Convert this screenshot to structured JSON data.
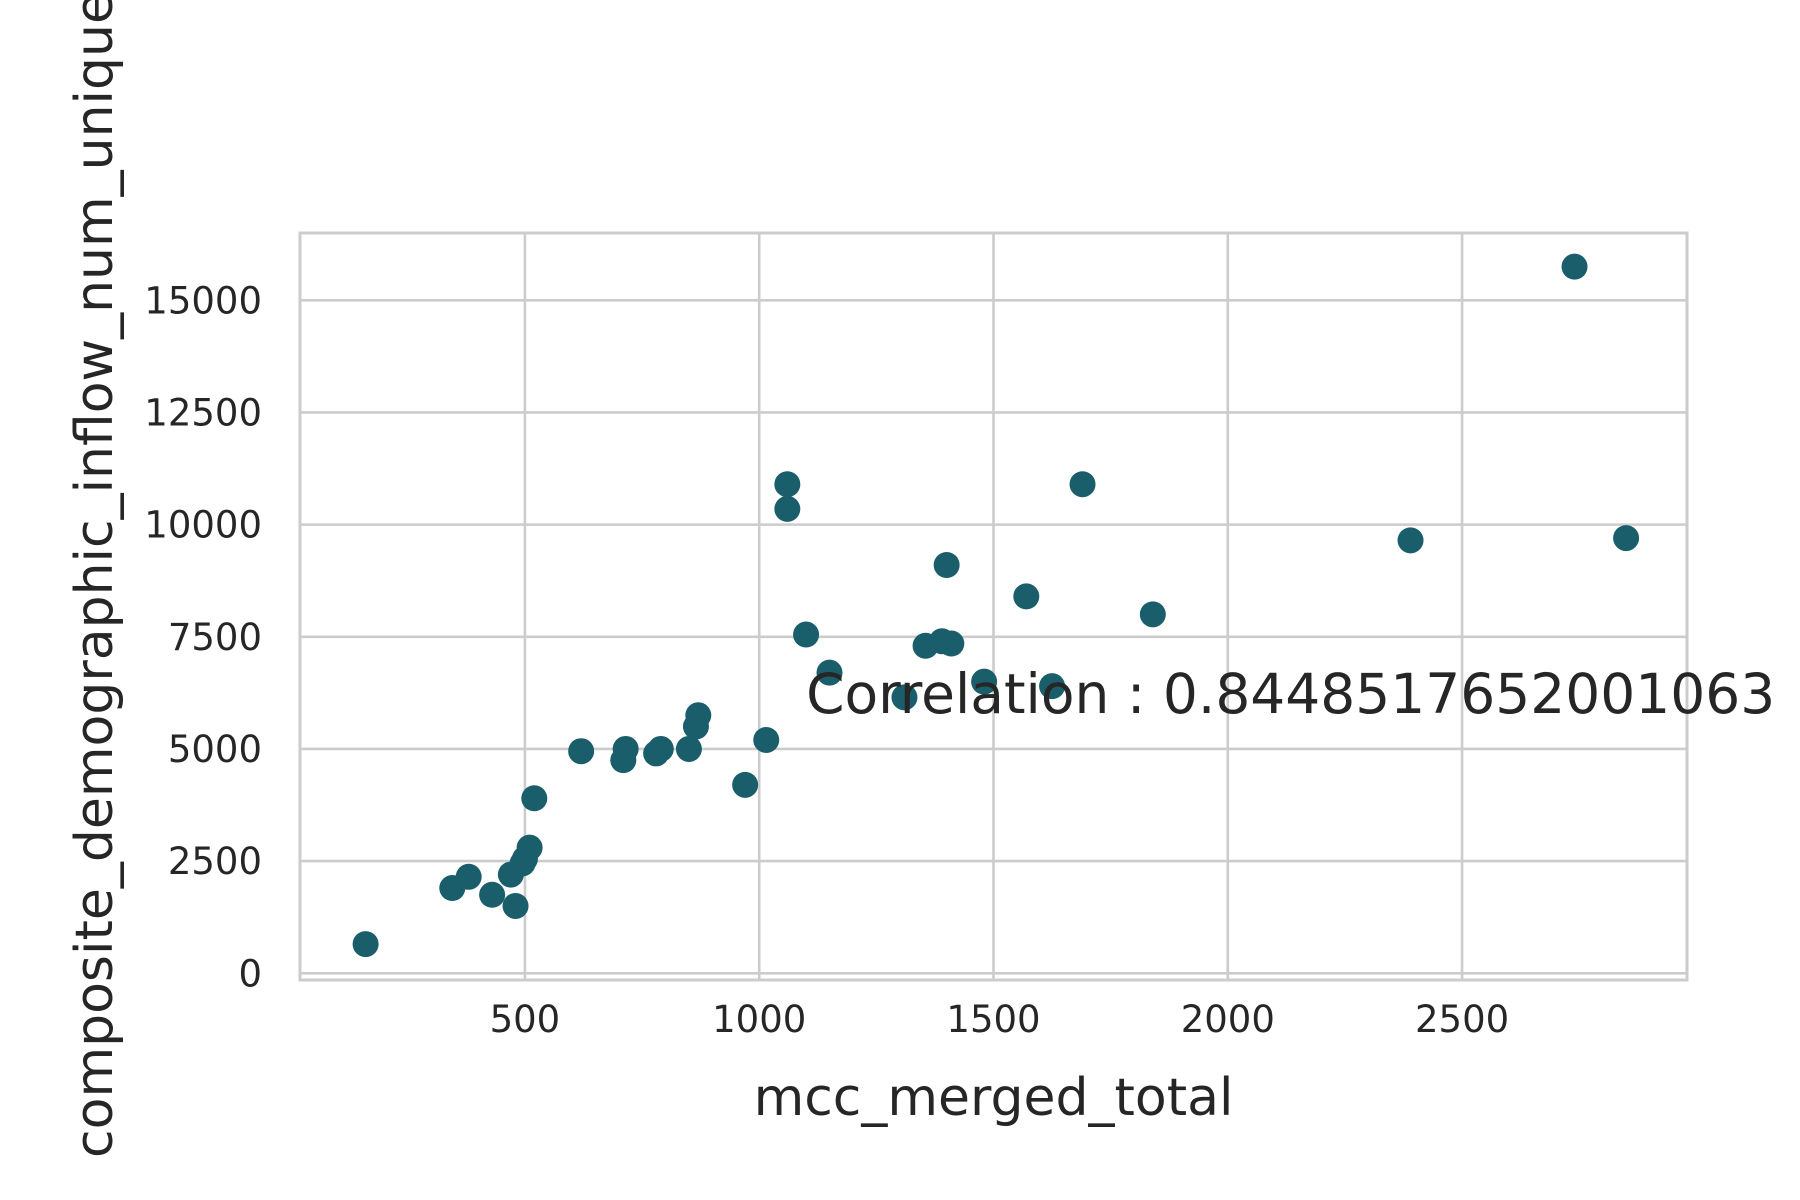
{
  "chart_data": {
    "type": "scatter",
    "title": "",
    "xlabel": "mcc_merged_total",
    "ylabel": "composite_demographic_inflow_num_unique",
    "xlim": [
      20,
      2980
    ],
    "ylim": [
      -150,
      16500
    ],
    "x_ticks": [
      500,
      1000,
      1500,
      2000,
      2500
    ],
    "y_ticks": [
      0,
      2500,
      5000,
      7500,
      10000,
      12500,
      15000
    ],
    "grid": true,
    "point_color": "#1b5e6b",
    "annotation": {
      "text": "Correlation : 0.8448517652001063",
      "x": 1100,
      "y": 6250
    },
    "points": [
      {
        "x": 160,
        "y": 650
      },
      {
        "x": 345,
        "y": 1900
      },
      {
        "x": 380,
        "y": 2150
      },
      {
        "x": 430,
        "y": 1750
      },
      {
        "x": 470,
        "y": 2200
      },
      {
        "x": 480,
        "y": 1500
      },
      {
        "x": 495,
        "y": 2450
      },
      {
        "x": 500,
        "y": 2550
      },
      {
        "x": 510,
        "y": 2800
      },
      {
        "x": 520,
        "y": 3900
      },
      {
        "x": 620,
        "y": 4950
      },
      {
        "x": 710,
        "y": 4750
      },
      {
        "x": 715,
        "y": 5000
      },
      {
        "x": 780,
        "y": 4900
      },
      {
        "x": 790,
        "y": 5000
      },
      {
        "x": 850,
        "y": 5000
      },
      {
        "x": 865,
        "y": 5500
      },
      {
        "x": 870,
        "y": 5750
      },
      {
        "x": 970,
        "y": 4200
      },
      {
        "x": 1015,
        "y": 5200
      },
      {
        "x": 1060,
        "y": 10900
      },
      {
        "x": 1060,
        "y": 10350
      },
      {
        "x": 1100,
        "y": 7550
      },
      {
        "x": 1150,
        "y": 6700
      },
      {
        "x": 1310,
        "y": 6150
      },
      {
        "x": 1355,
        "y": 7300
      },
      {
        "x": 1390,
        "y": 7400
      },
      {
        "x": 1410,
        "y": 7350
      },
      {
        "x": 1400,
        "y": 9100
      },
      {
        "x": 1480,
        "y": 6500
      },
      {
        "x": 1570,
        "y": 8400
      },
      {
        "x": 1625,
        "y": 6400
      },
      {
        "x": 1690,
        "y": 10900
      },
      {
        "x": 1840,
        "y": 8000
      },
      {
        "x": 2390,
        "y": 9650
      },
      {
        "x": 2740,
        "y": 15750
      },
      {
        "x": 2850,
        "y": 9700
      }
    ]
  }
}
